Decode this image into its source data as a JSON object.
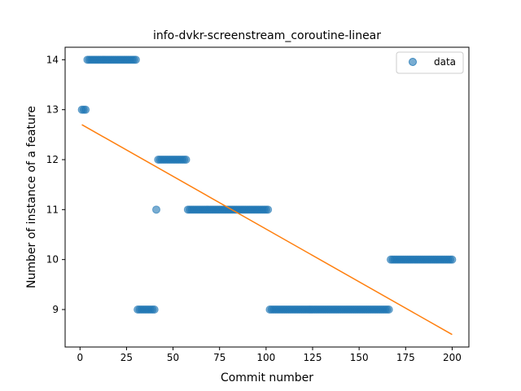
{
  "chart_data": {
    "type": "scatter",
    "title": "info-dvkr-screenstream_coroutine-linear",
    "xlabel": "Commit number",
    "ylabel": "Number of instance of a feature",
    "xlim": [
      -8,
      209
    ],
    "ylim": [
      8.25,
      14.25
    ],
    "xticks": [
      0,
      25,
      50,
      75,
      100,
      125,
      150,
      175,
      200
    ],
    "yticks": [
      9,
      10,
      11,
      12,
      13,
      14
    ],
    "legend": {
      "position": "top-right",
      "entries": [
        "data"
      ]
    },
    "colors": {
      "scatter": "#1f77b4",
      "line": "#ff7f0e"
    },
    "scatter_segments": [
      {
        "x_start": 1,
        "x_end": 3,
        "y": 13
      },
      {
        "x_start": 4,
        "x_end": 30,
        "y": 14
      },
      {
        "x_start": 31,
        "x_end": 40,
        "y": 9
      },
      {
        "x_start": 41,
        "x_end": 41,
        "y": 11
      },
      {
        "x_start": 42,
        "x_end": 57,
        "y": 12
      },
      {
        "x_start": 58,
        "x_end": 101,
        "y": 11
      },
      {
        "x_start": 102,
        "x_end": 166,
        "y": 9
      },
      {
        "x_start": 167,
        "x_end": 200,
        "y": 10
      }
    ],
    "trend_line": {
      "x": [
        1,
        200
      ],
      "y": [
        12.7,
        8.5
      ]
    }
  }
}
